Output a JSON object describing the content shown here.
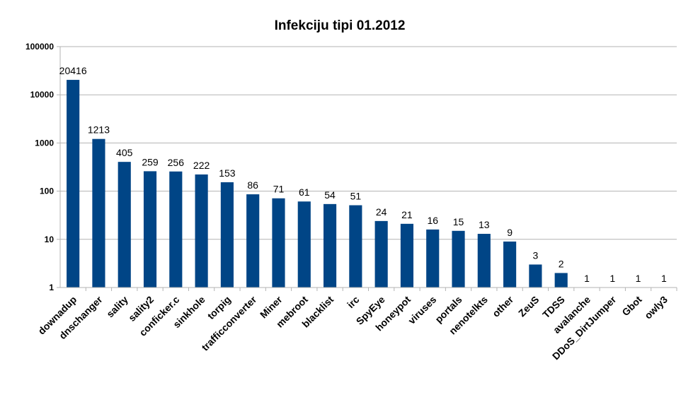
{
  "chart_data": {
    "type": "bar",
    "title": "Infekciju tipi 01.2012",
    "xlabel": "",
    "ylabel": "",
    "y_scale": "log",
    "ylim": [
      1,
      100000
    ],
    "y_ticks": [
      "1",
      "10",
      "100",
      "1000",
      "10000",
      "100000"
    ],
    "grid": true,
    "legend": "none",
    "bar_color": "#004586",
    "categories": [
      "downadup",
      "dnschanger",
      "sality",
      "sality2",
      "conficker.c",
      "sinkhole",
      "torpig",
      "trafficconverter",
      "Miner",
      "mebroot",
      "blacklist",
      "irc",
      "SpyEye",
      "honeypot",
      "viruses",
      "portals",
      "nenotelkts",
      "other",
      "ZeuS",
      "TDSS",
      "avalanche",
      "DDoS_DirtJumper",
      "Gbot",
      "owly3"
    ],
    "values": [
      20416,
      1213,
      405,
      259,
      256,
      222,
      153,
      86,
      71,
      61,
      54,
      51,
      24,
      21,
      16,
      15,
      13,
      9,
      3,
      2,
      1,
      1,
      1,
      1
    ]
  }
}
